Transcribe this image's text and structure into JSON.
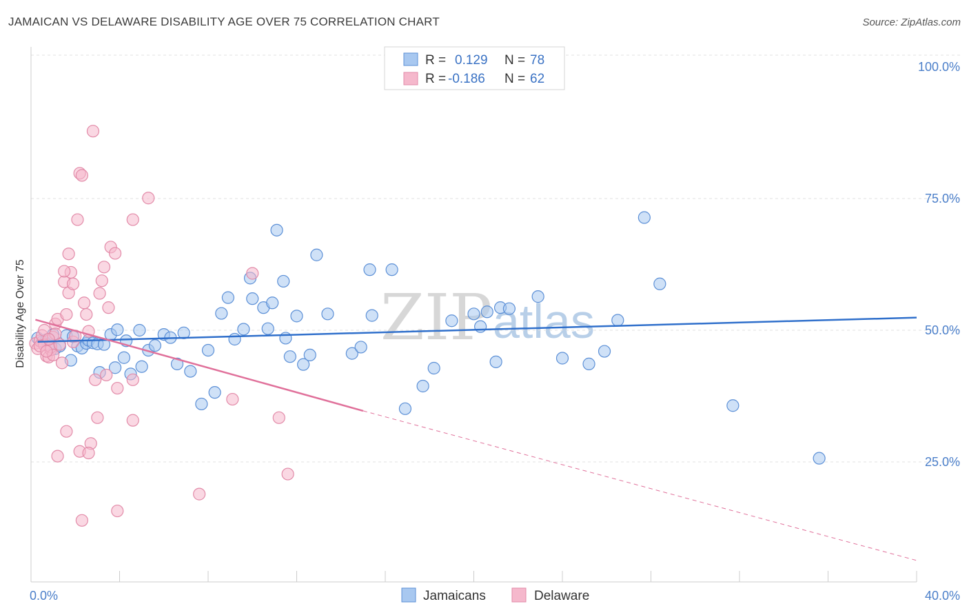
{
  "title": "JAMAICAN VS DELAWARE DISABILITY AGE OVER 75 CORRELATION CHART",
  "source": "Source: ZipAtlas.com",
  "watermark": {
    "zip": "ZIP",
    "atlas": "atlas"
  },
  "legend": {
    "rows": [
      {
        "r_label": "R =",
        "r_value": "0.129",
        "n_label": "N =",
        "n_value": "78"
      },
      {
        "r_label": "R =",
        "r_value": "-0.186",
        "n_label": "N =",
        "n_value": "62"
      }
    ]
  },
  "bottom_legend": {
    "jamaicans": "Jamaicans",
    "delaware": "Delaware"
  },
  "colors": {
    "jamaicans_fill": "#a8c8f0",
    "jamaicans_stroke": "#5b8fd6",
    "jamaicans_line": "#2f6fcb",
    "delaware_fill": "#f5b8cc",
    "delaware_stroke": "#e28aa8",
    "delaware_line": "#e0709a",
    "tick_text": "#4a7ec9"
  },
  "chart_data": {
    "type": "scatter",
    "title": "JAMAICAN VS DELAWARE DISABILITY AGE OVER 75 CORRELATION CHART",
    "xlabel": "",
    "ylabel": "Disability Age Over 75",
    "xlim": [
      0,
      40
    ],
    "ylim": [
      0,
      100
    ],
    "x_tick_labels": [
      "0.0%",
      "40.0%"
    ],
    "y_tick_labels": [
      "100.0%",
      "75.0%",
      "50.0%",
      "25.0%"
    ],
    "y_ticks": [
      100,
      75,
      50,
      25
    ],
    "grid": true,
    "legend_position": "top-center",
    "series": [
      {
        "name": "Jamaicans",
        "points": [
          [
            0.3,
            48.5
          ],
          [
            0.5,
            47.8
          ],
          [
            0.7,
            48.2
          ],
          [
            0.9,
            47.1
          ],
          [
            1.0,
            49.2
          ],
          [
            1.1,
            46.5
          ],
          [
            1.3,
            47.0
          ],
          [
            1.6,
            49.0
          ],
          [
            1.8,
            44.3
          ],
          [
            1.9,
            48.8
          ],
          [
            2.1,
            47.0
          ],
          [
            2.3,
            46.6
          ],
          [
            2.5,
            47.5
          ],
          [
            2.6,
            48.1
          ],
          [
            2.8,
            47.6
          ],
          [
            3.0,
            47.4
          ],
          [
            3.3,
            47.3
          ],
          [
            3.1,
            42.0
          ],
          [
            3.6,
            49.2
          ],
          [
            3.9,
            50.1
          ],
          [
            3.8,
            42.9
          ],
          [
            4.2,
            44.8
          ],
          [
            4.3,
            48.0
          ],
          [
            4.5,
            41.7
          ],
          [
            4.9,
            50.0
          ],
          [
            5.0,
            43.1
          ],
          [
            5.3,
            46.2
          ],
          [
            5.6,
            47.1
          ],
          [
            6.0,
            49.2
          ],
          [
            6.3,
            48.6
          ],
          [
            6.6,
            43.6
          ],
          [
            6.9,
            49.5
          ],
          [
            7.2,
            42.2
          ],
          [
            8.0,
            46.2
          ],
          [
            8.6,
            53.2
          ],
          [
            8.9,
            56.2
          ],
          [
            9.2,
            48.3
          ],
          [
            9.6,
            50.2
          ],
          [
            9.9,
            59.9
          ],
          [
            10.0,
            56.0
          ],
          [
            10.5,
            54.3
          ],
          [
            10.7,
            50.3
          ],
          [
            10.9,
            55.2
          ],
          [
            11.1,
            69.0
          ],
          [
            11.4,
            59.3
          ],
          [
            11.5,
            48.5
          ],
          [
            11.7,
            45.0
          ],
          [
            12.0,
            52.7
          ],
          [
            12.3,
            43.5
          ],
          [
            12.6,
            45.3
          ],
          [
            12.9,
            64.3
          ],
          [
            13.4,
            53.1
          ],
          [
            14.5,
            45.6
          ],
          [
            14.9,
            46.8
          ],
          [
            15.3,
            61.5
          ],
          [
            15.4,
            52.8
          ],
          [
            16.3,
            61.5
          ],
          [
            16.9,
            35.1
          ],
          [
            17.7,
            39.4
          ],
          [
            18.2,
            42.8
          ],
          [
            19.0,
            51.8
          ],
          [
            20.0,
            53.1
          ],
          [
            20.3,
            50.7
          ],
          [
            20.6,
            53.5
          ],
          [
            21.0,
            44.0
          ],
          [
            21.2,
            54.3
          ],
          [
            21.6,
            54.1
          ],
          [
            22.9,
            56.4
          ],
          [
            24.0,
            44.7
          ],
          [
            25.2,
            43.6
          ],
          [
            25.9,
            46.0
          ],
          [
            26.5,
            51.9
          ],
          [
            27.7,
            71.4
          ],
          [
            28.4,
            58.8
          ],
          [
            31.7,
            35.7
          ],
          [
            35.6,
            25.7
          ],
          [
            7.7,
            36.0
          ],
          [
            8.3,
            38.2
          ]
        ],
        "trend": {
          "x0": 0.3,
          "y0": 47.8,
          "x1": 40.0,
          "y1": 52.4
        }
      },
      {
        "name": "Delaware",
        "points": [
          [
            0.2,
            47.5
          ],
          [
            0.3,
            46.5
          ],
          [
            0.4,
            48.0
          ],
          [
            0.5,
            49.0
          ],
          [
            0.6,
            47.2
          ],
          [
            0.7,
            45.1
          ],
          [
            0.8,
            44.9
          ],
          [
            0.9,
            46.3
          ],
          [
            1.0,
            48.7
          ],
          [
            1.1,
            51.2
          ],
          [
            1.2,
            52.1
          ],
          [
            1.4,
            43.8
          ],
          [
            1.5,
            59.2
          ],
          [
            1.6,
            53.0
          ],
          [
            1.7,
            64.5
          ],
          [
            1.8,
            61.0
          ],
          [
            1.9,
            47.8
          ],
          [
            2.1,
            71.0
          ],
          [
            2.2,
            79.8
          ],
          [
            2.3,
            79.4
          ],
          [
            2.4,
            55.2
          ],
          [
            2.5,
            53.0
          ],
          [
            2.6,
            49.8
          ],
          [
            2.7,
            28.5
          ],
          [
            2.8,
            87.8
          ],
          [
            2.9,
            40.6
          ],
          [
            3.1,
            57.0
          ],
          [
            3.2,
            59.4
          ],
          [
            3.3,
            62.0
          ],
          [
            3.4,
            41.5
          ],
          [
            3.5,
            54.3
          ],
          [
            3.6,
            65.8
          ],
          [
            3.8,
            64.6
          ],
          [
            3.9,
            39.0
          ],
          [
            4.6,
            71.0
          ],
          [
            5.3,
            75.1
          ],
          [
            4.6,
            40.6
          ],
          [
            4.6,
            32.9
          ],
          [
            3.0,
            33.4
          ],
          [
            1.6,
            30.8
          ],
          [
            1.2,
            26.1
          ],
          [
            2.2,
            27.0
          ],
          [
            2.6,
            26.7
          ],
          [
            2.3,
            13.9
          ],
          [
            3.9,
            15.7
          ],
          [
            7.6,
            18.9
          ],
          [
            9.1,
            36.9
          ],
          [
            10.0,
            60.8
          ],
          [
            11.2,
            33.4
          ],
          [
            11.6,
            22.7
          ],
          [
            1.7,
            57.1
          ],
          [
            1.9,
            58.8
          ],
          [
            1.5,
            61.2
          ],
          [
            0.9,
            46.8
          ],
          [
            1.1,
            49.3
          ],
          [
            0.6,
            50.0
          ],
          [
            0.8,
            48.3
          ],
          [
            1.3,
            47.3
          ],
          [
            1.0,
            45.3
          ],
          [
            2.0,
            48.9
          ],
          [
            0.4,
            47.0
          ],
          [
            0.7,
            46.0
          ]
        ],
        "trend": {
          "x0": 0.2,
          "y0": 52.0,
          "x1": 15.0,
          "y1": 34.7,
          "dash_x1": 40.0,
          "dash_y1": 6.3
        }
      }
    ]
  }
}
